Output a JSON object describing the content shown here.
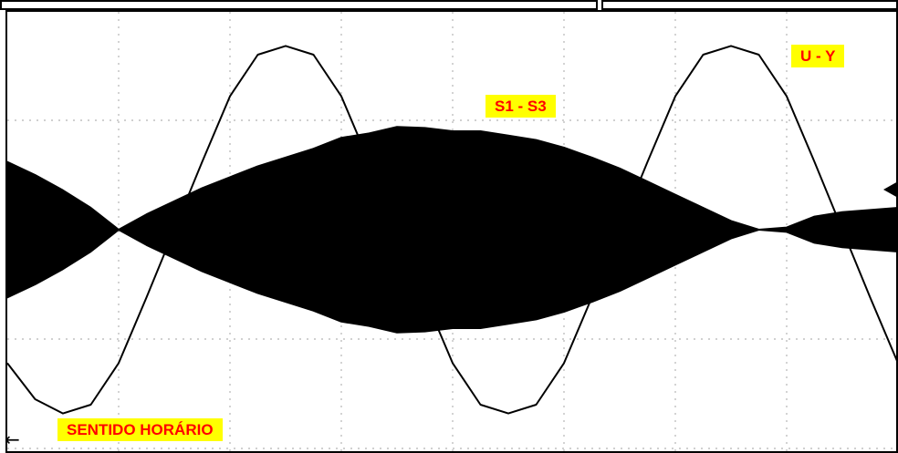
{
  "labels": {
    "s1_s3": "S1 - S3",
    "u_y": "U - Y",
    "direction": "SENTIDO HORÁRIO"
  },
  "colors": {
    "label_background": "#ffff00",
    "label_text": "#ff0000",
    "trace": "#000000",
    "grid": "#c0c0c0",
    "background": "#ffffff",
    "frame": "#000000"
  },
  "icons": {
    "channel_marker": "triangle-left-icon",
    "direction_arrow": "arrow-left-icon",
    "direction_arrow_glyph": "←"
  },
  "chart_data": {
    "type": "line",
    "title": "",
    "xlabel": "",
    "ylabel": "",
    "grid": true,
    "divisions": {
      "x": 8,
      "y": 4
    },
    "xlim": [
      0,
      8
    ],
    "ylim": [
      -2,
      2
    ],
    "series": [
      {
        "name": "U - Y",
        "style": "line",
        "x": [
          0.0,
          0.25,
          0.5,
          0.75,
          1.0,
          1.25,
          1.5,
          1.75,
          2.0,
          2.25,
          2.5,
          2.75,
          3.0,
          3.25,
          3.5,
          3.75,
          4.0,
          4.25,
          4.5,
          4.75,
          5.0,
          5.25,
          5.5,
          5.75,
          6.0,
          6.25,
          6.5,
          6.75,
          7.0,
          7.25,
          7.5,
          7.75,
          8.0
        ],
        "values": [
          -1.22,
          -1.55,
          -1.68,
          -1.6,
          -1.22,
          -0.62,
          0.0,
          0.62,
          1.22,
          1.6,
          1.68,
          1.6,
          1.22,
          0.62,
          0.0,
          -0.62,
          -1.22,
          -1.6,
          -1.68,
          -1.6,
          -1.22,
          -0.62,
          0.0,
          0.62,
          1.22,
          1.6,
          1.68,
          1.6,
          1.22,
          0.62,
          0.0,
          -0.62,
          -1.22
        ]
      },
      {
        "name": "S1 - S3",
        "style": "envelope",
        "x": [
          0.0,
          0.25,
          0.5,
          0.75,
          1.0,
          1.25,
          1.5,
          1.75,
          2.0,
          2.25,
          2.5,
          2.75,
          3.0,
          3.25,
          3.5,
          3.75,
          4.0,
          4.25,
          4.5,
          4.75,
          5.0,
          5.25,
          5.5,
          5.75,
          6.0,
          6.25,
          6.5,
          6.75,
          7.0,
          7.25,
          7.5,
          7.75,
          8.0
        ],
        "upper": [
          0.62,
          0.5,
          0.36,
          0.2,
          0.0,
          0.14,
          0.26,
          0.38,
          0.48,
          0.58,
          0.66,
          0.74,
          0.84,
          0.88,
          0.94,
          0.93,
          0.9,
          0.9,
          0.86,
          0.82,
          0.75,
          0.66,
          0.56,
          0.44,
          0.32,
          0.2,
          0.08,
          0.0,
          0.02,
          0.12,
          0.16,
          0.18,
          0.2
        ],
        "lower": [
          -0.62,
          -0.5,
          -0.36,
          -0.2,
          0.0,
          -0.14,
          -0.26,
          -0.38,
          -0.48,
          -0.58,
          -0.66,
          -0.74,
          -0.84,
          -0.88,
          -0.94,
          -0.93,
          -0.9,
          -0.9,
          -0.86,
          -0.82,
          -0.75,
          -0.66,
          -0.56,
          -0.44,
          -0.32,
          -0.2,
          -0.08,
          0.0,
          -0.02,
          -0.12,
          -0.16,
          -0.18,
          -0.2
        ]
      }
    ]
  }
}
